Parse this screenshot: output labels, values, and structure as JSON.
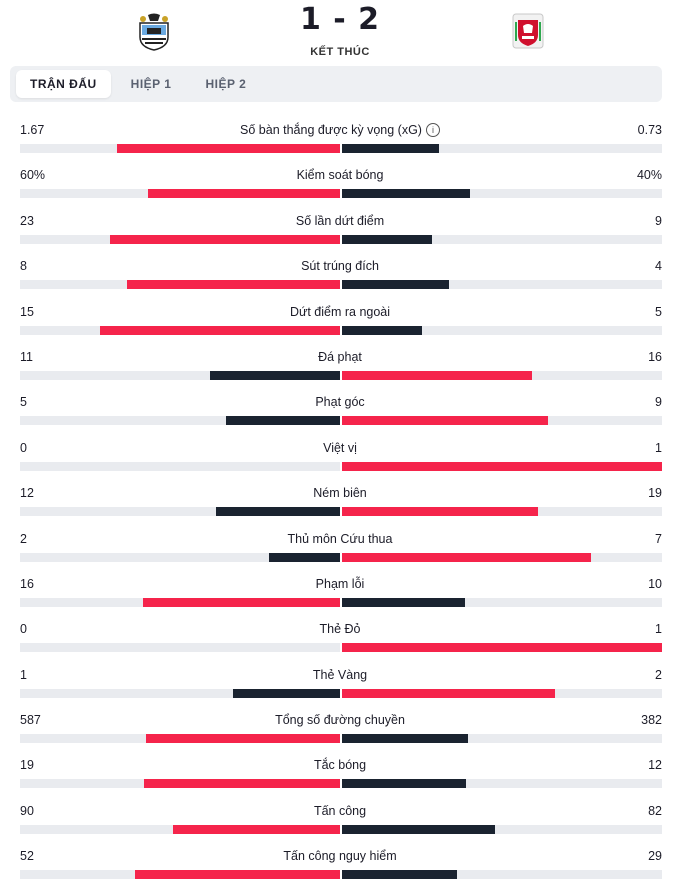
{
  "match": {
    "score": "1 - 2",
    "status": "KẾT THÚC",
    "home_logo_icon": "newcastle-crest-icon",
    "away_logo_icon": "liverpool-crest-icon"
  },
  "tabs": [
    {
      "label": "TRẬN ĐẤU",
      "active": true
    },
    {
      "label": "HIỆP 1",
      "active": false
    },
    {
      "label": "HIỆP 2",
      "active": false
    }
  ],
  "colors": {
    "leader": "#f5244b",
    "trailer": "#1a2330",
    "track": "#e9ebef"
  },
  "stats": [
    {
      "label": "Số bàn thắng được kỳ vọng (xG)",
      "home": "1.67",
      "away": "0.73",
      "home_val": 1.67,
      "away_val": 0.73,
      "info": true
    },
    {
      "label": "Kiểm soát bóng",
      "home": "60%",
      "away": "40%",
      "home_val": 60,
      "away_val": 40
    },
    {
      "label": "Số lần dứt điểm",
      "home": "23",
      "away": "9",
      "home_val": 23,
      "away_val": 9
    },
    {
      "label": "Sút trúng đích",
      "home": "8",
      "away": "4",
      "home_val": 8,
      "away_val": 4
    },
    {
      "label": "Dứt điểm ra ngoài",
      "home": "15",
      "away": "5",
      "home_val": 15,
      "away_val": 5
    },
    {
      "label": "Đá phạt",
      "home": "11",
      "away": "16",
      "home_val": 11,
      "away_val": 16
    },
    {
      "label": "Phạt góc",
      "home": "5",
      "away": "9",
      "home_val": 5,
      "away_val": 9
    },
    {
      "label": "Việt vị",
      "home": "0",
      "away": "1",
      "home_val": 0,
      "away_val": 1
    },
    {
      "label": "Ném biên",
      "home": "12",
      "away": "19",
      "home_val": 12,
      "away_val": 19
    },
    {
      "label": "Thủ môn Cứu thua",
      "home": "2",
      "away": "7",
      "home_val": 2,
      "away_val": 7
    },
    {
      "label": "Phạm lỗi",
      "home": "16",
      "away": "10",
      "home_val": 16,
      "away_val": 10
    },
    {
      "label": "Thẻ Đỏ",
      "home": "0",
      "away": "1",
      "home_val": 0,
      "away_val": 1
    },
    {
      "label": "Thẻ Vàng",
      "home": "1",
      "away": "2",
      "home_val": 1,
      "away_val": 2
    },
    {
      "label": "Tổng số đường chuyền",
      "home": "587",
      "away": "382",
      "home_val": 587,
      "away_val": 382
    },
    {
      "label": "Tắc bóng",
      "home": "19",
      "away": "12",
      "home_val": 19,
      "away_val": 12
    },
    {
      "label": "Tấn công",
      "home": "90",
      "away": "82",
      "home_val": 90,
      "away_val": 82
    },
    {
      "label": "Tấn công nguy hiểm",
      "home": "52",
      "away": "29",
      "home_val": 52,
      "away_val": 29
    }
  ]
}
